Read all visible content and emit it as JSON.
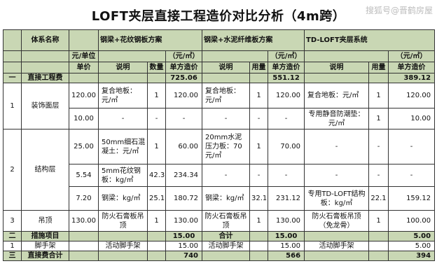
{
  "title": "LOFT夹层直接工程造价对比分析（4m跨）",
  "watermark": "搜狐号@晋鹤房屋",
  "header": {
    "system_name": "体系名称",
    "schemes": [
      "钢梁+花纹钢板方案",
      "钢梁+水泥纤维板方案",
      "TD-LOFT夹层系统"
    ],
    "unit_label": "元/单位",
    "unit_price_label": "（元/㎡）",
    "col_unit_price": "单价",
    "col_desc": "说明",
    "col_qty": "数量",
    "col_qty2": "用量",
    "col_unit_cost": "单方造价"
  },
  "sections": {
    "s1": {
      "no": "一",
      "name": "直接工程费",
      "a": "725.06",
      "b": "551.12",
      "c": "389.12"
    },
    "s2": {
      "no": "二",
      "name": "措施项目",
      "a": "15.00",
      "b_label": "合计",
      "b": "15.00",
      "c": "5.00"
    },
    "s3": {
      "no": "三",
      "name": "直接费合计",
      "a": "740",
      "b": "566",
      "c": "394"
    }
  },
  "rows": [
    {
      "no": "1",
      "name": "装饰面层",
      "price": "120.00",
      "a_desc": "复合地板：元/㎡",
      "a_qty": "1",
      "a_cost": "120.00",
      "b_desc": "复合地板：元/㎡",
      "b_qty": "1",
      "b_cost": "120.00",
      "c_desc": "复合地板：元/㎡",
      "c_qty": "1",
      "c_cost": "120.00"
    },
    {
      "price": "10.00",
      "a_desc": "-",
      "a_qty": "-",
      "a_cost": "-",
      "b_desc": "-",
      "b_qty": "-",
      "b_cost": "-",
      "c_desc": "专用静音防潮垫：元/㎡",
      "c_qty": "1",
      "c_cost": "10.00"
    },
    {
      "no": "2",
      "name": "结构层",
      "price": "25.00",
      "a_desc": "50mm细石混凝土：元/㎡",
      "a_qty": "1",
      "a_cost": "60.00",
      "b_desc": "20mm水泥压力板：70元/㎡",
      "b_qty": "1",
      "b_cost": "70.00",
      "c_desc": "-",
      "c_qty": "-",
      "c_cost": "-"
    },
    {
      "price": "5.54",
      "a_desc": "5mm花纹钢板：kg/㎡",
      "a_qty": "42.3",
      "a_cost": "234.34",
      "b_desc": "-",
      "b_qty": "-",
      "b_cost": "-",
      "c_desc": "-",
      "c_qty": "-",
      "c_cost": "-"
    },
    {
      "price": "7.20",
      "a_desc": "钢梁：kg/㎡",
      "a_qty": "25.1",
      "a_cost": "180.72",
      "b_desc": "钢梁：kg/㎡",
      "b_qty": "32.1",
      "b_cost": "231.12",
      "c_desc": "专用TD-LOFT结构板：kg/㎡",
      "c_qty": "22.1",
      "c_cost": "159.12"
    },
    {
      "no": "3",
      "name": "吊顶",
      "price": "130.00",
      "a_desc": "防火石膏板吊顶",
      "a_qty": "1",
      "a_cost": "130.00",
      "b_desc": "防火石膏板吊顶",
      "b_qty": "1",
      "b_cost": "130.00",
      "c_desc": "防火石膏板吊顶（免龙骨）",
      "c_qty": "1",
      "c_cost": "100.00"
    }
  ],
  "measure_row": {
    "no": "1",
    "name": "脚手架",
    "a_desc": "活动脚手架",
    "a_cost": "15.00",
    "b_desc": "活动脚手架",
    "b_cost": "15.00",
    "c_desc": "活动脚手架",
    "c_cost": "5.00"
  }
}
